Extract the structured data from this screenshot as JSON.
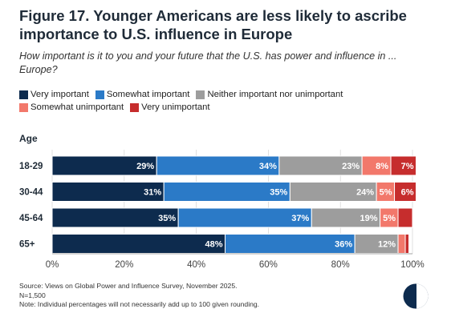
{
  "title": "Figure 17. Younger Americans are less likely to ascribe importance to U.S. influence in Europe",
  "subtitle": "How important is it to you and your future that the U.S. has power and influence in ... Europe?",
  "legend": [
    {
      "label": "Very important",
      "color": "#0d2b4e"
    },
    {
      "label": "Somewhat important",
      "color": "#2b7ac7"
    },
    {
      "label": "Neither important nor unimportant",
      "color": "#9d9d9d"
    },
    {
      "label": "Somewhat unimportant",
      "color": "#f2786b"
    },
    {
      "label": "Very unimportant",
      "color": "#c62d2d"
    }
  ],
  "footnotes": {
    "source": "Source: Views on Global Power and Influence Survey, November 2025.",
    "n": "N=1,500",
    "note": "Note: Individual percentages will not necessarily add up to 100 given rounding."
  },
  "chart_data": {
    "type": "bar",
    "orientation": "horizontal",
    "stacked": true,
    "title": "Figure 17. Younger Americans are less likely to ascribe importance to U.S. influence in Europe",
    "ylabel": "Age",
    "xlim": [
      0,
      100
    ],
    "xticks": [
      "0%",
      "20%",
      "40%",
      "60%",
      "80%",
      "100%"
    ],
    "grid": true,
    "legend_position": "top",
    "categories": [
      "18-29",
      "30-44",
      "45-64",
      "65+"
    ],
    "series": [
      {
        "name": "Very important",
        "color": "#0d2b4e",
        "values": [
          29,
          31,
          35,
          48
        ],
        "labels": [
          "29%",
          "31%",
          "35%",
          "48%"
        ]
      },
      {
        "name": "Somewhat important",
        "color": "#2b7ac7",
        "values": [
          34,
          35,
          37,
          36
        ],
        "labels": [
          "34%",
          "35%",
          "37%",
          "36%"
        ]
      },
      {
        "name": "Neither important nor unimportant",
        "color": "#9d9d9d",
        "values": [
          23,
          24,
          19,
          12
        ],
        "labels": [
          "23%",
          "24%",
          "19%",
          "12%"
        ]
      },
      {
        "name": "Somewhat unimportant",
        "color": "#f2786b",
        "values": [
          8,
          5,
          5,
          2
        ],
        "labels": [
          "8%",
          "5%",
          "5%",
          ""
        ]
      },
      {
        "name": "Very unimportant",
        "color": "#c62d2d",
        "values": [
          7,
          6,
          4,
          1
        ],
        "labels": [
          "7%",
          "6%",
          "",
          ""
        ]
      }
    ]
  }
}
